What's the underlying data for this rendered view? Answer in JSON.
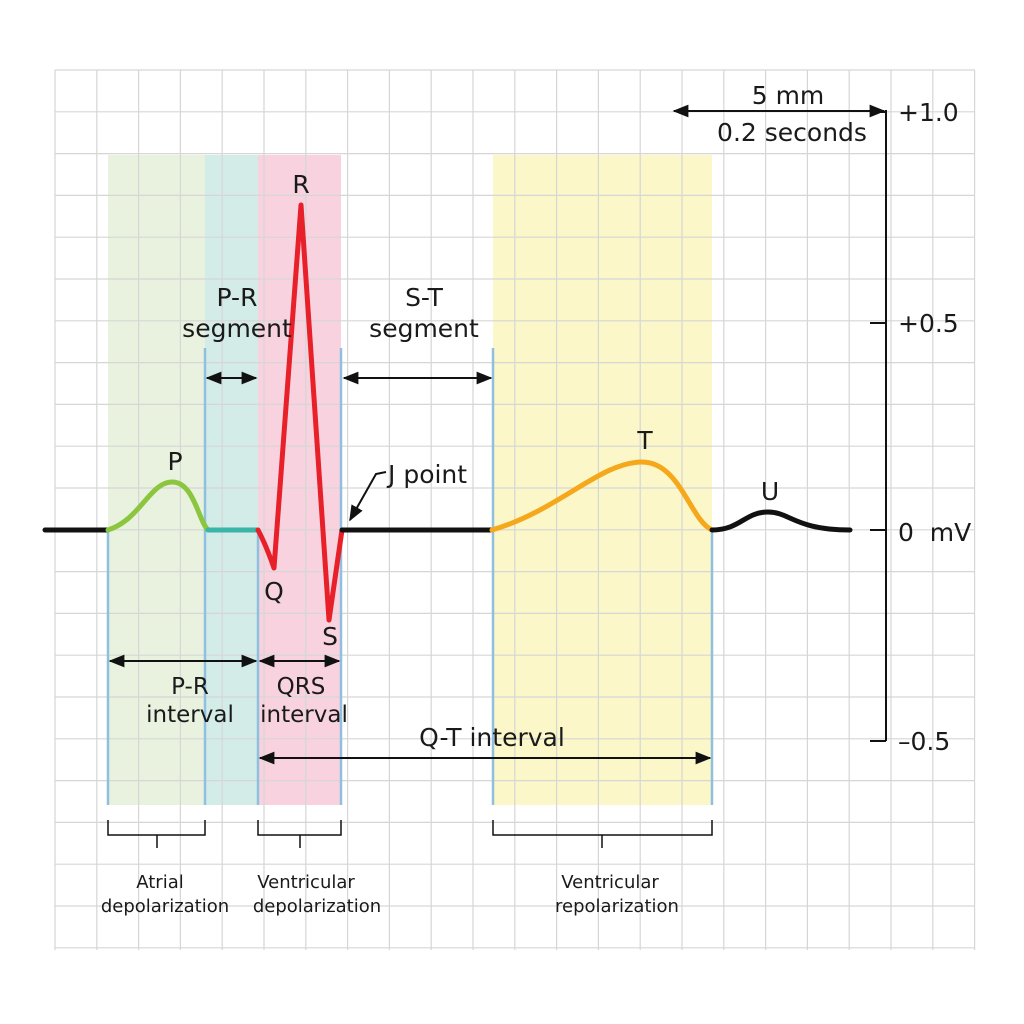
{
  "scale": {
    "distance": "5 mm",
    "duration": "0.2 seconds"
  },
  "axis_labels": [
    "+1.0",
    "+0.5",
    "0  mV",
    "–0.5"
  ],
  "waves": {
    "p": "P",
    "q": "Q",
    "r": "R",
    "s": "S",
    "t": "T",
    "u": "U"
  },
  "segments": {
    "pr": [
      "P-R",
      "segment"
    ],
    "st": [
      "S-T",
      "segment"
    ],
    "j_point": "J point"
  },
  "intervals": {
    "pr": [
      "P-R",
      "interval"
    ],
    "qrs": [
      "QRS",
      "interval"
    ],
    "qt": "Q-T interval"
  },
  "phases": {
    "atrial": [
      "Atrial",
      "depolarization"
    ],
    "ventricular_depol": [
      "Ventricular",
      "depolarization"
    ],
    "ventricular_repol": [
      "Ventricular",
      "repolarization"
    ]
  }
}
